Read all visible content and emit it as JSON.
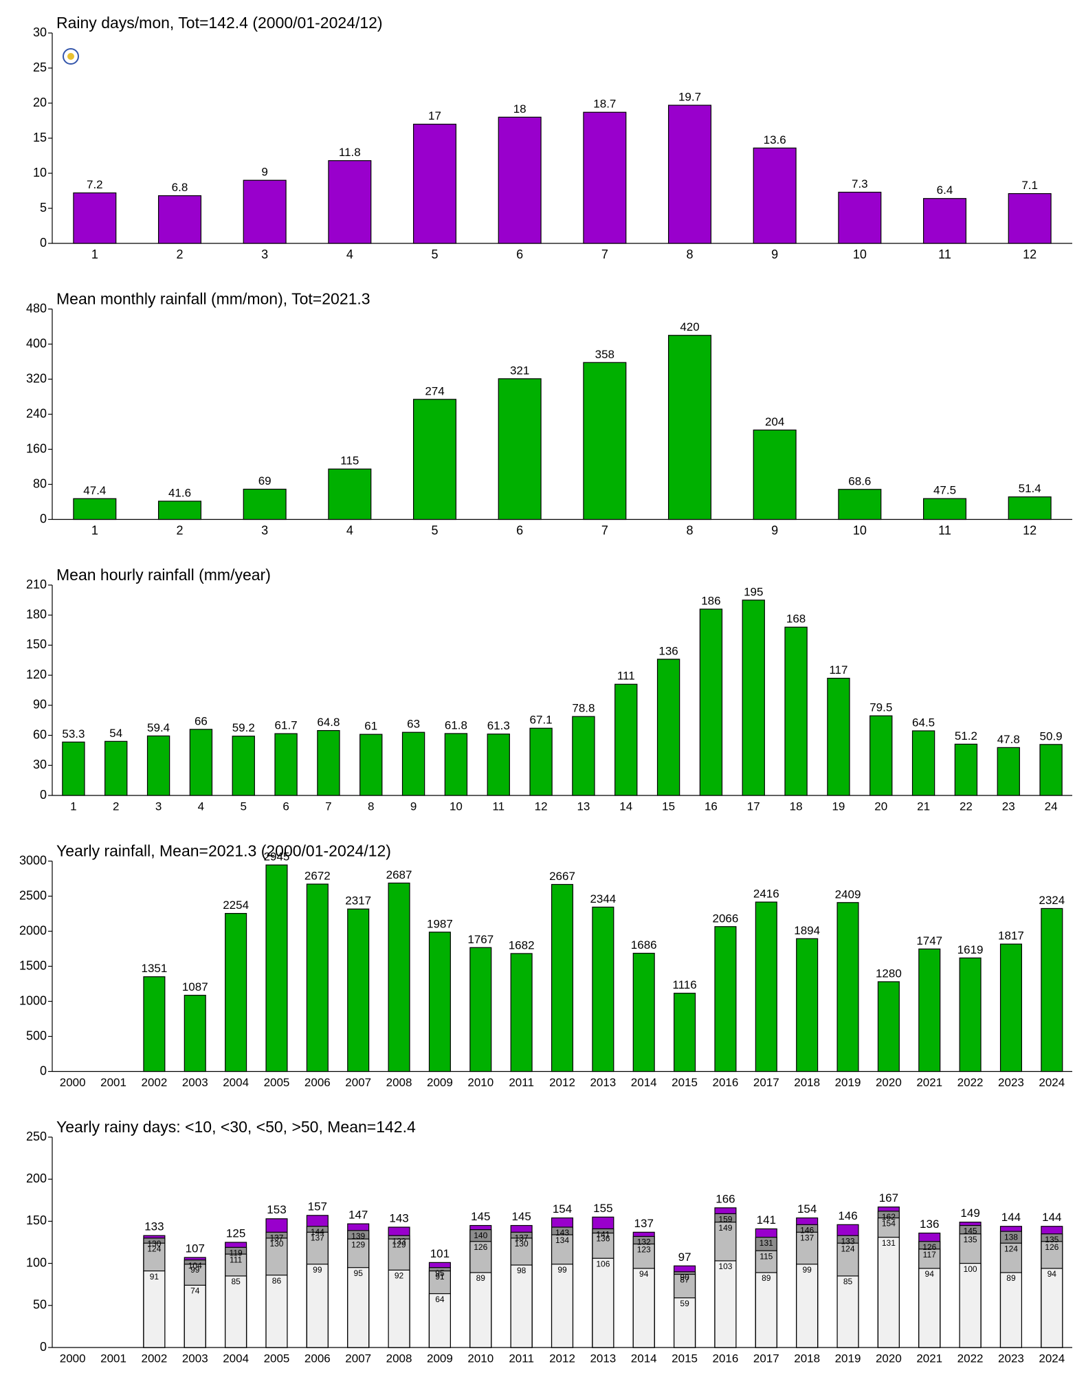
{
  "chart_data": [
    {
      "type": "bar",
      "title": "Rainy days/mon, Tot=142.4 (2000/01-2024/12)",
      "categories": [
        1,
        2,
        3,
        4,
        5,
        6,
        7,
        8,
        9,
        10,
        11,
        12
      ],
      "values": [
        7.2,
        6.8,
        9,
        11.8,
        17,
        18,
        18.7,
        19.7,
        13.6,
        7.3,
        6.4,
        7.1
      ],
      "color": "#9900cc",
      "ylim": [
        0,
        30
      ],
      "yticks": [
        0,
        5,
        10,
        15,
        20,
        25,
        30
      ]
    },
    {
      "type": "bar",
      "title": "Mean monthly rainfall (mm/mon), Tot=2021.3",
      "categories": [
        1,
        2,
        3,
        4,
        5,
        6,
        7,
        8,
        9,
        10,
        11,
        12
      ],
      "values": [
        47.4,
        41.6,
        69,
        115,
        274,
        321,
        358,
        420,
        204,
        68.6,
        47.5,
        51.4
      ],
      "color": "#00b000",
      "ylim": [
        0,
        480
      ],
      "yticks": [
        0,
        80,
        160,
        240,
        320,
        400,
        480
      ]
    },
    {
      "type": "bar",
      "title": "Mean hourly rainfall (mm/year)",
      "categories": [
        1,
        2,
        3,
        4,
        5,
        6,
        7,
        8,
        9,
        10,
        11,
        12,
        13,
        14,
        15,
        16,
        17,
        18,
        19,
        20,
        21,
        22,
        23,
        24
      ],
      "values": [
        53.3,
        54,
        59.4,
        66,
        59.2,
        61.7,
        64.8,
        61,
        63,
        61.8,
        61.3,
        67.1,
        78.8,
        111,
        136,
        186,
        195,
        168,
        117,
        79.5,
        64.5,
        51.2,
        47.8,
        50.9
      ],
      "color": "#00b000",
      "ylim": [
        0,
        210
      ],
      "yticks": [
        0,
        30,
        60,
        90,
        120,
        150,
        180,
        210
      ]
    },
    {
      "type": "bar",
      "title": "Yearly rainfall, Mean=2021.3 (2000/01-2024/12)",
      "categories": [
        2000,
        2001,
        2002,
        2003,
        2004,
        2005,
        2006,
        2007,
        2008,
        2009,
        2010,
        2011,
        2012,
        2013,
        2014,
        2015,
        2016,
        2017,
        2018,
        2019,
        2020,
        2021,
        2022,
        2023,
        2024
      ],
      "values": [
        null,
        null,
        1351,
        1087,
        2254,
        2945,
        2672,
        2317,
        2687,
        1987,
        1767,
        1682,
        2667,
        2344,
        1686,
        1116,
        2066,
        2416,
        1894,
        2409,
        1280,
        1747,
        1619,
        1817,
        2324
      ],
      "color": "#00b000",
      "ylim": [
        0,
        3000
      ],
      "yticks": [
        0,
        500,
        1000,
        1500,
        2000,
        2500,
        3000
      ]
    },
    {
      "type": "bar",
      "title": "Yearly rainy days: <10, <30, <50, >50, Mean=142.4",
      "categories": [
        2000,
        2001,
        2002,
        2003,
        2004,
        2005,
        2006,
        2007,
        2008,
        2009,
        2010,
        2011,
        2012,
        2013,
        2014,
        2015,
        2016,
        2017,
        2018,
        2019,
        2020,
        2021,
        2022,
        2023,
        2024
      ],
      "series": [
        {
          "color": "#9900cc",
          "values": [
            null,
            null,
            133,
            107,
            125,
            153,
            157,
            147,
            143,
            101,
            145,
            145,
            154,
            155,
            137,
            97,
            166,
            141,
            154,
            146,
            167,
            136,
            149,
            144,
            144
          ]
        },
        {
          "color": "#8c8c8c",
          "values": [
            null,
            null,
            130,
            104,
            119,
            137,
            144,
            139,
            133,
            95,
            140,
            137,
            143,
            141,
            132,
            90,
            159,
            131,
            146,
            133,
            162,
            126,
            145,
            138,
            135
          ]
        },
        {
          "color": "#bdbdbd",
          "values": [
            null,
            null,
            124,
            99,
            111,
            130,
            137,
            129,
            129,
            91,
            126,
            130,
            134,
            136,
            123,
            87,
            149,
            115,
            137,
            124,
            154,
            117,
            135,
            124,
            126
          ]
        },
        {
          "color": "#f0f0f0",
          "values": [
            null,
            null,
            91,
            74,
            85,
            86,
            99,
            95,
            92,
            64,
            89,
            98,
            99,
            106,
            94,
            59,
            103,
            89,
            99,
            85,
            131,
            94,
            100,
            89,
            94
          ]
        }
      ],
      "ylim": [
        0,
        250
      ],
      "yticks": [
        0,
        50,
        100,
        150,
        200,
        250
      ]
    }
  ]
}
